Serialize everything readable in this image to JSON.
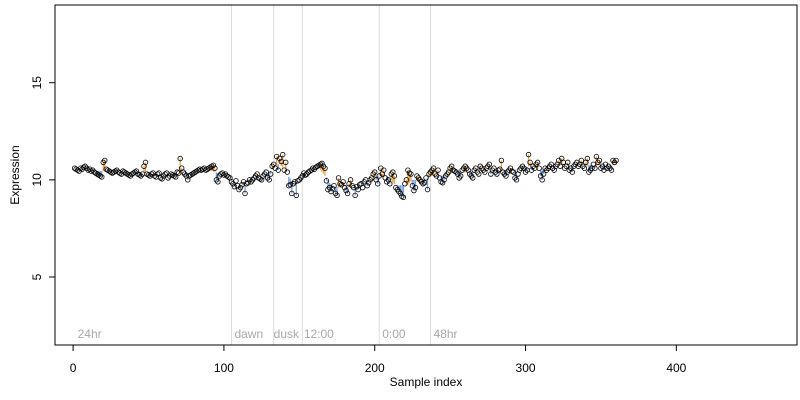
{
  "chart_data": {
    "type": "scatter",
    "xlabel": "Sample index",
    "ylabel": "Expression",
    "xlim": [
      -12,
      480
    ],
    "ylim": [
      1.5,
      19
    ],
    "x_ticks": [
      0,
      100,
      200,
      300,
      400
    ],
    "y_ticks": [
      5,
      10,
      15
    ],
    "grid": false,
    "legend": "none",
    "colors": {
      "frame": "#000000",
      "point_edge": "#000000",
      "connector_high": "#e8a24a",
      "connector_low": "#7fa3d9",
      "divider": "#dcdcdc",
      "region_label": "#a8a8a8"
    },
    "dividers": [
      105,
      133,
      152,
      203,
      237
    ],
    "region_labels": [
      {
        "text": "24hr",
        "x": 3
      },
      {
        "text": "dawn",
        "x": 107
      },
      {
        "text": "dusk",
        "x": 133
      },
      {
        "text": "12:00",
        "x": 153
      },
      {
        "text": "0:00",
        "x": 205
      },
      {
        "text": "48hr",
        "x": 239
      }
    ],
    "series": [
      {
        "x_start": 1,
        "y": [
          10.6,
          10.55,
          10.5,
          10.45,
          10.6,
          10.55,
          10.65,
          10.7,
          10.6,
          10.5,
          10.55,
          10.45,
          10.5,
          10.4,
          10.35,
          10.3,
          10.25,
          10.2,
          10.15,
          10.9,
          11.0,
          10.55,
          10.5,
          10.45,
          10.4,
          10.35,
          10.4,
          10.45,
          10.5,
          10.4,
          10.35,
          10.3,
          10.45,
          10.4,
          10.35,
          10.3,
          10.25,
          10.2,
          10.3,
          10.35,
          10.4,
          10.45,
          10.3,
          10.25,
          10.2,
          10.3,
          10.7,
          10.9,
          10.3,
          10.25,
          10.2,
          10.3,
          10.35,
          10.2,
          10.15,
          10.3,
          10.35,
          10.1,
          10.05,
          10.2,
          10.3,
          10.35,
          10.1,
          10.2,
          10.3,
          10.25,
          10.2,
          10.15,
          10.4,
          10.35,
          11.1,
          10.6,
          10.4,
          10.3,
          10.2,
          10.0,
          10.2,
          10.25,
          10.3,
          10.35,
          10.4,
          10.45,
          10.5,
          10.55,
          10.5,
          10.55,
          10.6,
          10.5,
          10.55,
          10.6,
          10.65,
          10.7,
          10.75,
          10.6,
          10.0,
          9.9,
          10.2,
          10.3,
          10.35,
          10.25,
          10.3,
          10.2,
          10.15,
          10.1,
          9.9,
          9.8,
          9.65,
          9.95,
          9.7,
          9.5,
          9.6,
          9.75,
          9.9,
          9.3,
          9.8,
          9.85,
          10.0,
          9.9,
          10.0,
          10.1,
          10.2,
          10.3,
          10.1,
          10.05,
          10.0,
          10.2,
          10.3,
          10.4,
          10.1,
          10.0,
          10.3,
          10.7,
          10.8,
          10.6,
          11.2,
          10.5,
          11.1,
          10.95,
          11.3,
          10.5,
          10.9,
          10.4,
          9.7,
          9.75,
          9.3,
          9.8,
          9.9,
          9.2,
          9.95,
          10.0,
          10.1,
          10.2,
          10.35,
          10.25,
          10.3,
          10.4,
          10.45,
          10.5,
          10.6,
          10.55,
          10.65,
          10.7,
          10.75,
          10.8,
          10.85,
          10.7,
          10.6,
          9.95,
          9.5,
          9.6,
          9.4,
          9.55,
          9.7,
          9.3,
          9.2,
          10.1,
          9.8,
          9.75,
          9.9,
          9.6,
          9.45,
          9.3,
          9.8,
          10.0,
          9.7,
          9.6,
          9.2,
          9.65,
          9.5,
          9.75,
          9.8,
          9.6,
          9.9,
          10.0,
          9.7,
          9.85,
          10.0,
          10.1,
          10.3,
          10.4,
          10.0,
          9.8,
          10.2,
          10.6,
          10.3,
          10.5,
          10.1,
          9.9,
          10.0,
          9.8,
          10.3,
          10.4,
          10.2,
          9.6,
          9.5,
          9.4,
          9.3,
          9.15,
          9.1,
          9.8,
          10.0,
          10.5,
          10.35,
          10.3,
          9.7,
          9.45,
          9.6,
          10.2,
          10.1,
          10.0,
          9.9,
          9.8,
          9.85,
          10.1,
          9.5,
          10.3,
          10.4,
          10.5,
          10.6,
          10.3,
          10.2,
          10.5,
          10.1,
          9.9,
          9.85,
          10.0,
          10.2,
          10.3,
          10.4,
          10.6,
          10.7,
          10.5,
          10.45,
          10.4,
          10.3,
          10.1,
          10.2,
          10.5,
          10.6,
          10.7,
          10.6,
          10.5,
          10.3,
          10.2,
          10.1,
          10.5,
          10.6,
          10.4,
          10.3,
          10.7,
          10.6,
          10.5,
          10.4,
          10.6,
          10.7,
          10.8,
          10.3,
          10.5,
          10.6,
          10.4,
          10.3,
          10.5,
          10.55,
          11.0,
          10.4,
          10.3,
          10.2,
          10.4,
          10.5,
          10.6,
          10.45,
          10.4,
          10.1,
          10.0,
          10.3,
          10.5,
          10.6,
          10.7,
          10.6,
          10.4,
          10.5,
          11.3,
          10.9,
          10.5,
          10.7,
          10.6,
          10.8,
          10.9,
          10.6,
          10.2,
          10.0,
          10.3,
          10.6,
          10.5,
          10.6,
          10.7,
          10.8,
          10.6,
          10.5,
          10.7,
          10.8,
          11.0,
          10.7,
          11.1,
          10.9,
          10.6,
          10.7,
          10.9,
          10.5,
          10.6,
          10.4,
          10.7,
          10.8,
          10.9,
          10.7,
          10.8,
          11.0,
          10.7,
          10.6,
          10.9,
          11.1,
          10.4,
          10.5,
          10.6,
          10.8,
          10.6,
          11.2,
          10.9,
          11.0,
          10.6,
          10.7,
          10.5,
          10.8,
          10.6,
          10.7,
          10.6,
          10.5,
          11.0,
          10.9,
          11.0
        ]
      }
    ]
  }
}
